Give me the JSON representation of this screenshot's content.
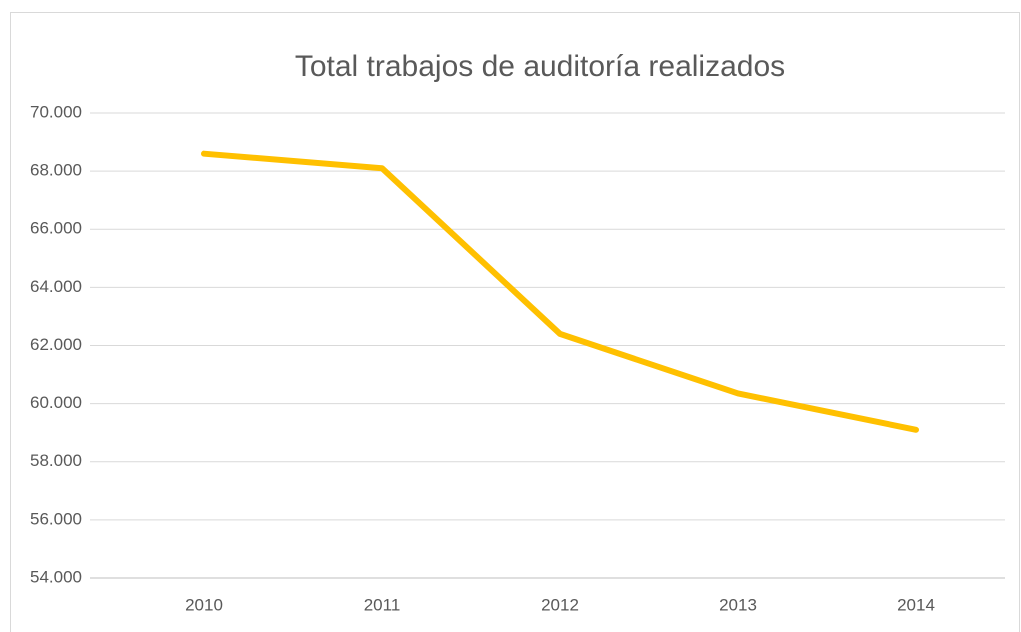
{
  "chart_data": {
    "type": "line",
    "title": "Total trabajos de auditoría realizados",
    "categories": [
      "2010",
      "2011",
      "2012",
      "2013",
      "2014"
    ],
    "series": [
      {
        "name": "Total trabajos de auditoría realizados",
        "color": "#ffc000",
        "values": [
          68600,
          68100,
          62400,
          60350,
          59100
        ]
      }
    ],
    "ylim": [
      54000,
      70000
    ],
    "yticks": [
      {
        "value": 54000,
        "label": "54.000"
      },
      {
        "value": 56000,
        "label": "56.000"
      },
      {
        "value": 58000,
        "label": "58.000"
      },
      {
        "value": 60000,
        "label": "60.000"
      },
      {
        "value": 62000,
        "label": "62.000"
      },
      {
        "value": 64000,
        "label": "64.000"
      },
      {
        "value": 66000,
        "label": "66.000"
      },
      {
        "value": 68000,
        "label": "68.000"
      },
      {
        "value": 70000,
        "label": "70.000"
      }
    ],
    "grid": true
  }
}
